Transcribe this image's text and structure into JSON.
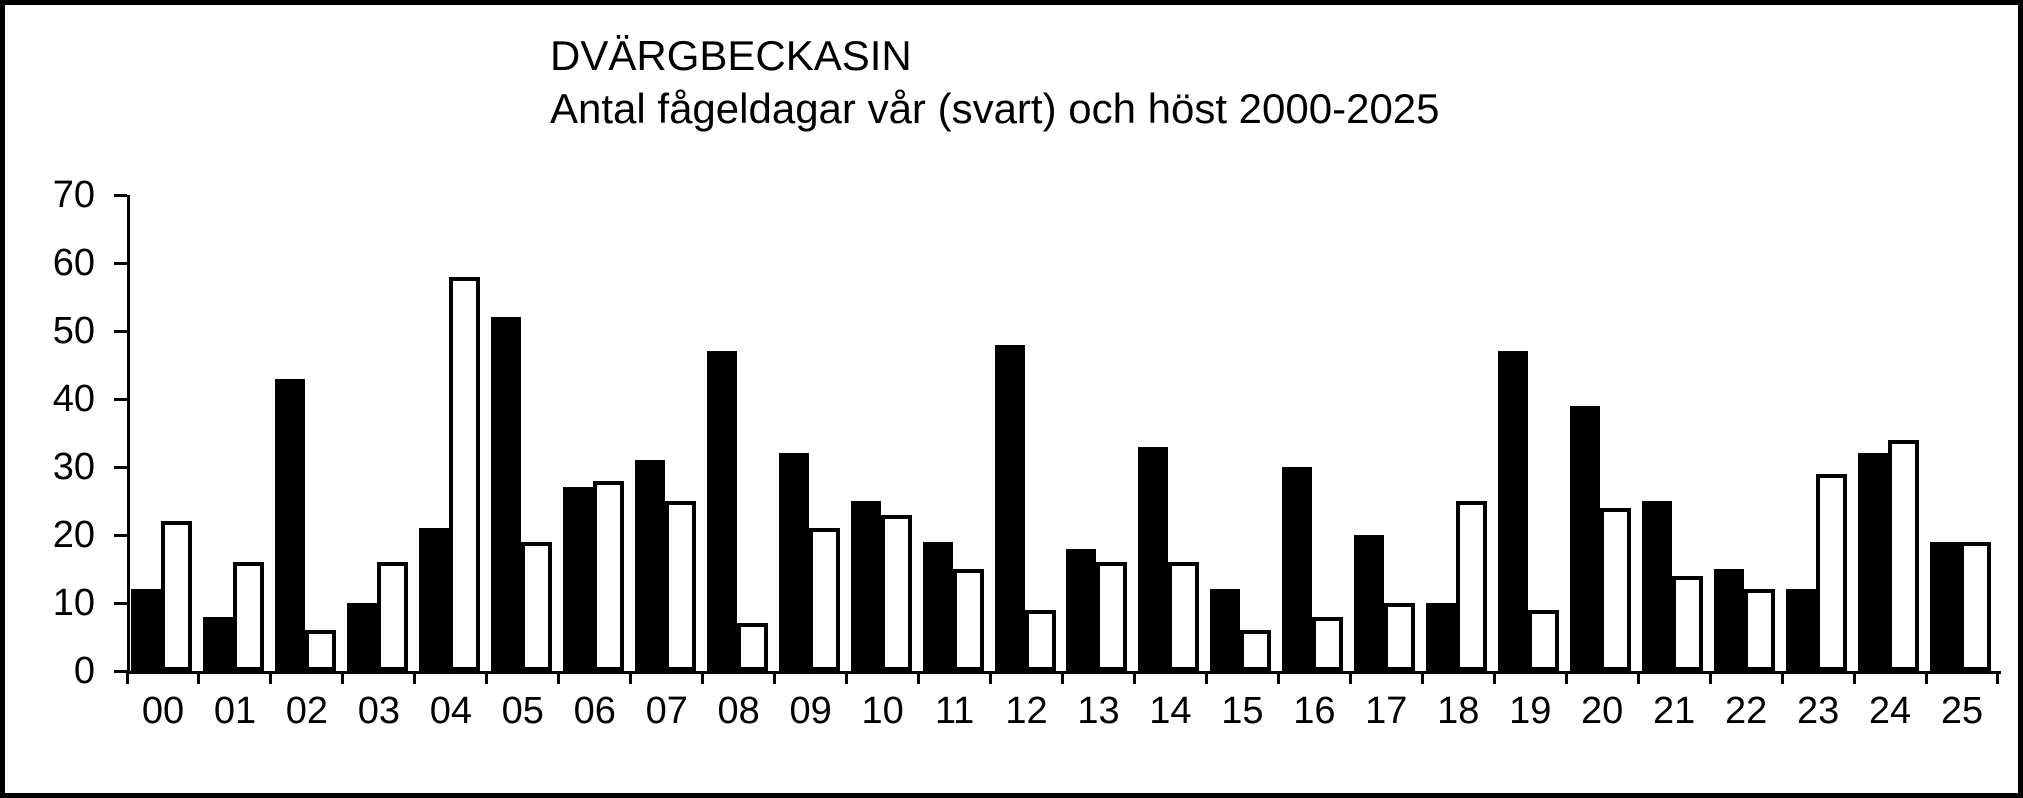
{
  "title": "DVÄRGBECKASIN",
  "subtitle": "Antal fågeldagar vår (svart) och höst 2000-2025",
  "colors": {
    "foreground": "#000000",
    "background": "#ffffff",
    "bar_spring_fill": "#000000",
    "bar_autumn_fill": "#ffffff",
    "bar_stroke": "#000000"
  },
  "chart_data": {
    "type": "bar",
    "title": "DVÄRGBECKASIN",
    "subtitle": "Antal fågeldagar vår (svart) och höst 2000-2025",
    "xlabel": "",
    "ylabel": "",
    "ylim": [
      0,
      70
    ],
    "yticks": [
      0,
      10,
      20,
      30,
      40,
      50,
      60,
      70
    ],
    "grid": false,
    "legend_position": "none",
    "categories": [
      "00",
      "01",
      "02",
      "03",
      "04",
      "05",
      "06",
      "07",
      "08",
      "09",
      "10",
      "11",
      "12",
      "13",
      "14",
      "15",
      "16",
      "17",
      "18",
      "19",
      "20",
      "21",
      "22",
      "23",
      "24",
      "25"
    ],
    "series": [
      {
        "name": "vår (svart)",
        "color": "#000000",
        "values": [
          12,
          8,
          43,
          10,
          21,
          52,
          27,
          31,
          47,
          32,
          25,
          19,
          48,
          18,
          33,
          12,
          30,
          20,
          10,
          47,
          39,
          25,
          15,
          12,
          32,
          19
        ]
      },
      {
        "name": "höst",
        "color": "#ffffff",
        "values": [
          22,
          16,
          6,
          16,
          58,
          19,
          28,
          25,
          7,
          21,
          23,
          15,
          9,
          16,
          16,
          6,
          8,
          10,
          25,
          9,
          24,
          14,
          12,
          29,
          34,
          19
        ]
      }
    ]
  }
}
